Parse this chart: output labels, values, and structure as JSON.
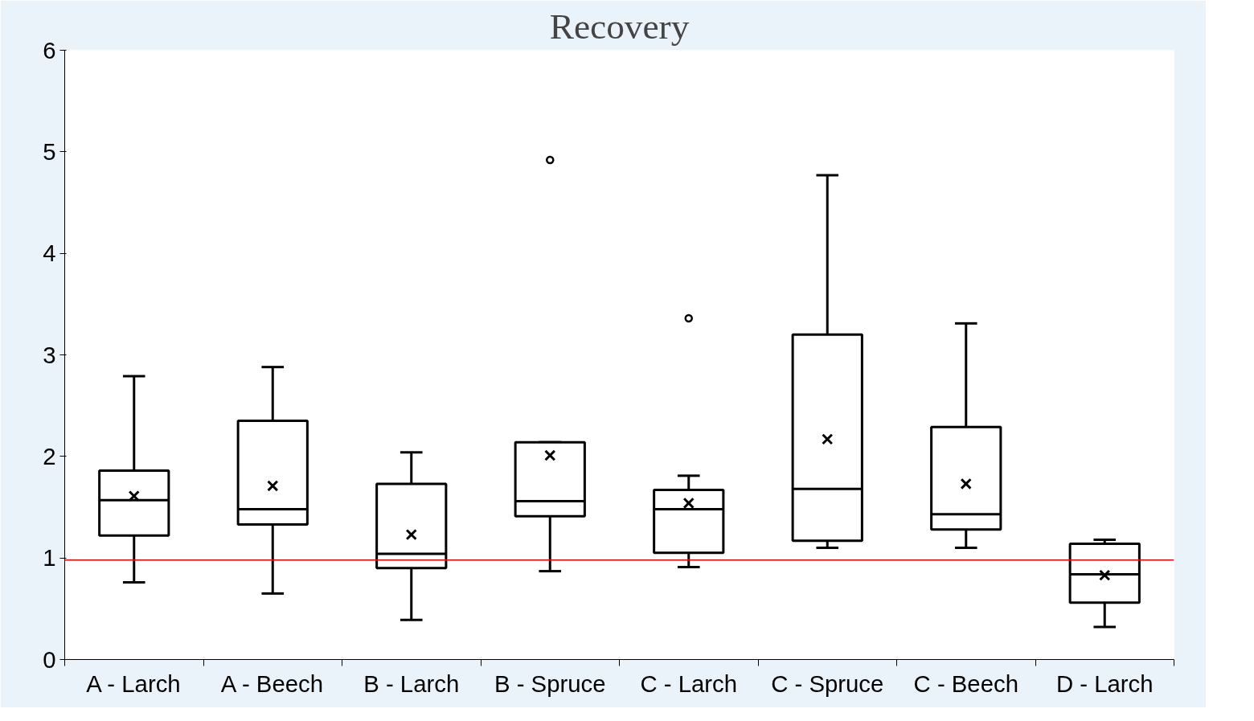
{
  "chart_data": {
    "type": "box",
    "title": "Recovery",
    "categories": [
      "A - Larch",
      "A - Beech",
      "B - Larch",
      "B - Spruce",
      "C - Larch",
      "C - Spruce",
      "C - Beech",
      "D - Larch"
    ],
    "boxes": [
      {
        "low": 0.76,
        "q1": 1.22,
        "median": 1.57,
        "q3": 1.86,
        "high": 2.79,
        "mean": 1.61
      },
      {
        "low": 0.65,
        "q1": 1.33,
        "median": 1.48,
        "q3": 2.35,
        "high": 2.88,
        "mean": 1.71
      },
      {
        "low": 0.39,
        "q1": 0.9,
        "median": 1.04,
        "q3": 1.73,
        "high": 2.04,
        "mean": 1.23
      },
      {
        "low": 0.87,
        "q1": 1.41,
        "median": 1.56,
        "q3": 2.14,
        "high": 2.14,
        "mean": 2.01,
        "outliers": [
          4.92
        ]
      },
      {
        "low": 0.91,
        "q1": 1.05,
        "median": 1.48,
        "q3": 1.67,
        "high": 1.81,
        "mean": 1.54,
        "outliers": [
          3.36
        ]
      },
      {
        "low": 1.1,
        "q1": 1.17,
        "median": 1.68,
        "q3": 3.2,
        "high": 4.77,
        "mean": 2.17
      },
      {
        "low": 1.1,
        "q1": 1.28,
        "median": 1.43,
        "q3": 2.29,
        "high": 3.31,
        "mean": 1.73
      },
      {
        "low": 0.32,
        "q1": 0.56,
        "median": 0.84,
        "q3": 1.14,
        "high": 1.18,
        "mean": 0.83
      }
    ],
    "color": "#000000",
    "ylim": [
      0,
      6
    ],
    "yticks": [
      0,
      1,
      2,
      3,
      4,
      5,
      6
    ],
    "ref_lines": [
      {
        "axis": "y",
        "value": 0.98,
        "color": "#ff0000"
      }
    ],
    "grid": false
  }
}
